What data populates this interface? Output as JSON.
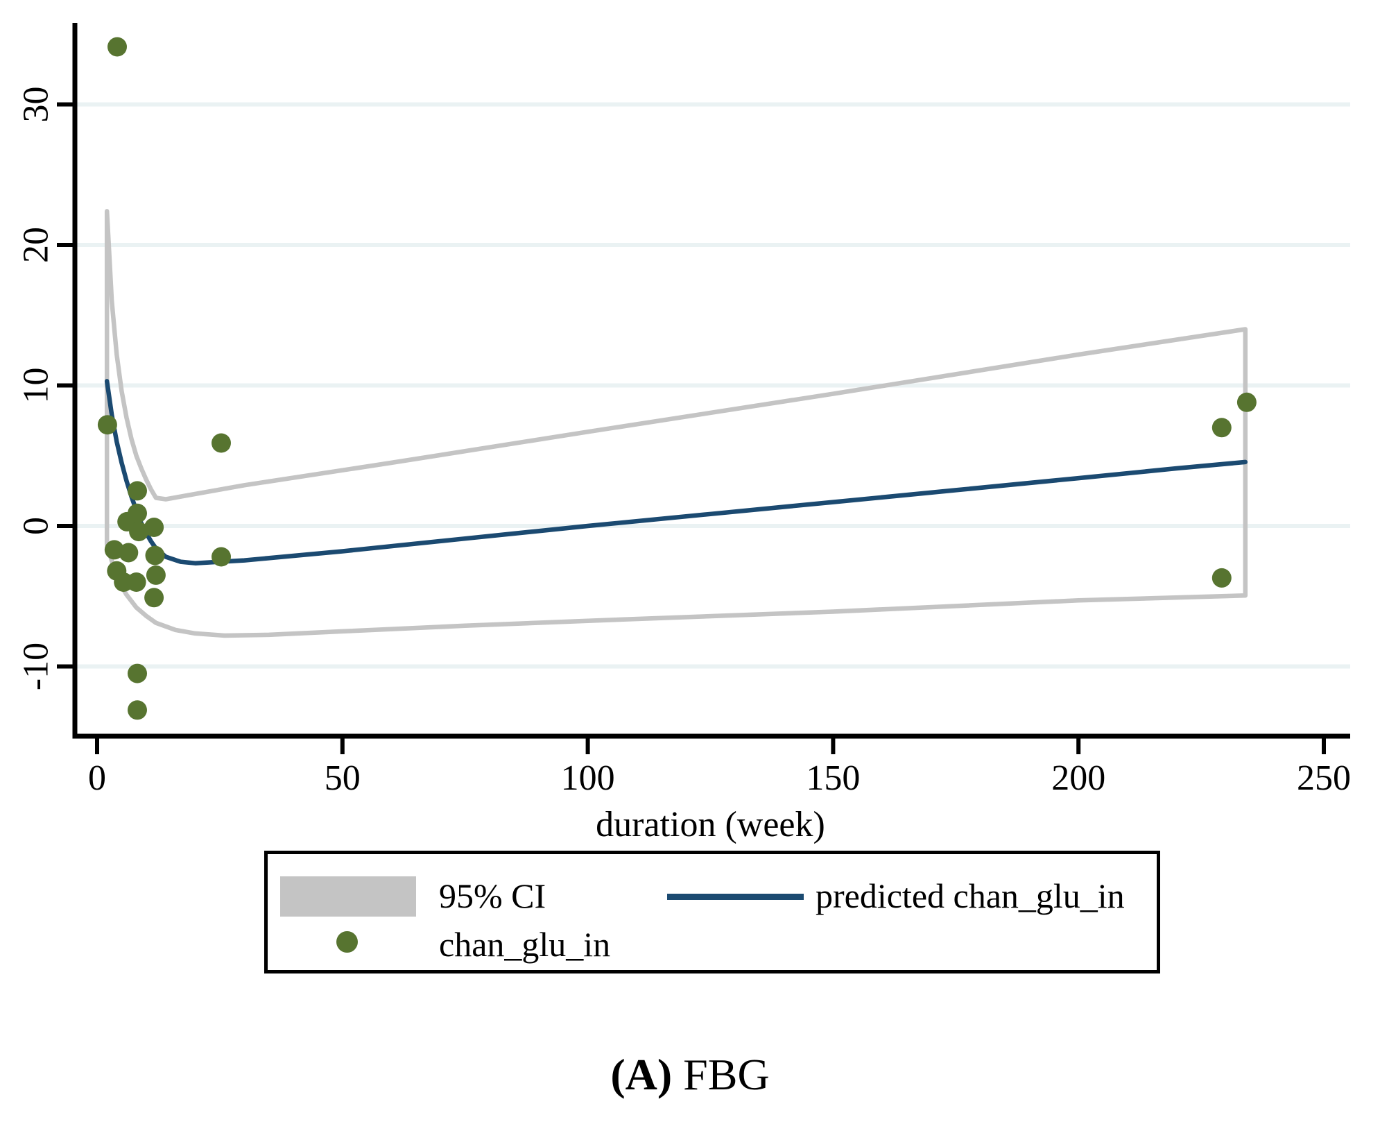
{
  "figure": {
    "caption": {
      "bold": "(A)",
      "text": " FBG"
    }
  },
  "chart_data": {
    "type": "scatter",
    "title": "",
    "xlabel": "duration (week)",
    "ylabel": "",
    "xlim": [
      -4.5,
      255.5
    ],
    "ylim": [
      -15,
      35.8
    ],
    "grid": true,
    "grid_color": "#eaf2f3",
    "x_ticks": [
      {
        "label": "0",
        "value": 0
      },
      {
        "label": "50",
        "value": 50
      },
      {
        "label": "100",
        "value": 100
      },
      {
        "label": "150",
        "value": 150
      },
      {
        "label": "200",
        "value": 200
      },
      {
        "label": "250",
        "value": 250
      }
    ],
    "y_ticks": [
      {
        "label": "30",
        "value": 30
      },
      {
        "label": "20",
        "value": 20
      },
      {
        "label": "10",
        "value": 10
      },
      {
        "label": "0",
        "value": 0
      },
      {
        "label": "-10",
        "value": -10
      }
    ],
    "legend": {
      "position": "bottom",
      "items": [
        {
          "label": "95% CI",
          "type": "area",
          "color": "#c4c4c4"
        },
        {
          "label": "predicted chan_glu_in",
          "type": "line",
          "color": "#1b4a71"
        },
        {
          "label": "chan_glu_in",
          "type": "marker",
          "color": "#577430"
        }
      ]
    },
    "series": [
      {
        "name": "chan_glu_in",
        "type": "scatter",
        "color": "#577430",
        "points": [
          [
            4.1,
            34.1
          ],
          [
            2.1,
            7.2
          ],
          [
            25.3,
            5.9
          ],
          [
            8.2,
            2.5
          ],
          [
            6.1,
            0.3
          ],
          [
            8.2,
            0.9
          ],
          [
            8.5,
            -0.4
          ],
          [
            11.6,
            -0.1
          ],
          [
            3.5,
            -1.7
          ],
          [
            6.4,
            -1.9
          ],
          [
            4.0,
            -3.2
          ],
          [
            5.4,
            -4.0
          ],
          [
            8.0,
            -4.0
          ],
          [
            11.8,
            -2.1
          ],
          [
            12.0,
            -3.5
          ],
          [
            11.6,
            -5.1
          ],
          [
            25.3,
            -2.2
          ],
          [
            8.2,
            -10.5
          ],
          [
            8.2,
            -13.1
          ],
          [
            229.2,
            7.0
          ],
          [
            234.3,
            8.8
          ],
          [
            229.2,
            -3.7
          ]
        ]
      },
      {
        "name": "predicted chan_glu_in",
        "type": "line",
        "color": "#1b4a71",
        "points": [
          [
            2,
            10.3
          ],
          [
            3,
            7.9
          ],
          [
            4,
            6.0
          ],
          [
            5,
            4.5
          ],
          [
            6,
            3.2
          ],
          [
            7,
            2.1
          ],
          [
            8,
            1.1
          ],
          [
            9,
            0.2
          ],
          [
            10,
            -0.5
          ],
          [
            11,
            -1.1
          ],
          [
            12,
            -1.6
          ],
          [
            14,
            -2.2
          ],
          [
            17,
            -2.55
          ],
          [
            20,
            -2.65
          ],
          [
            25,
            -2.55
          ],
          [
            30,
            -2.45
          ],
          [
            50,
            -1.8
          ],
          [
            75,
            -0.9
          ],
          [
            100,
            0.0
          ],
          [
            125,
            0.85
          ],
          [
            150,
            1.7
          ],
          [
            175,
            2.55
          ],
          [
            200,
            3.4
          ],
          [
            220,
            4.1
          ],
          [
            234,
            4.55
          ]
        ]
      },
      {
        "name": "95% CI",
        "type": "band_outline",
        "color": "#c4c4c4",
        "upper": [
          [
            2,
            22.4
          ],
          [
            3,
            16.0
          ],
          [
            4,
            12.2
          ],
          [
            5,
            9.6
          ],
          [
            6,
            7.7
          ],
          [
            7,
            6.2
          ],
          [
            8,
            5.0
          ],
          [
            9,
            4.1
          ],
          [
            10,
            3.3
          ],
          [
            11,
            2.6
          ],
          [
            12,
            2.0
          ],
          [
            14,
            1.9
          ],
          [
            30,
            2.9
          ],
          [
            60,
            4.5
          ],
          [
            100,
            6.7
          ],
          [
            150,
            9.4
          ],
          [
            200,
            12.2
          ],
          [
            234,
            14.0
          ]
        ],
        "lower": [
          [
            2,
            -1.3
          ],
          [
            3,
            -2.5
          ],
          [
            4,
            -3.5
          ],
          [
            5,
            -4.3
          ],
          [
            6,
            -4.9
          ],
          [
            8,
            -5.8
          ],
          [
            10,
            -6.4
          ],
          [
            12,
            -6.9
          ],
          [
            16,
            -7.4
          ],
          [
            20,
            -7.65
          ],
          [
            26,
            -7.8
          ],
          [
            35,
            -7.75
          ],
          [
            50,
            -7.5
          ],
          [
            75,
            -7.1
          ],
          [
            100,
            -6.75
          ],
          [
            150,
            -6.1
          ],
          [
            200,
            -5.3
          ],
          [
            234,
            -4.95
          ]
        ]
      }
    ]
  }
}
